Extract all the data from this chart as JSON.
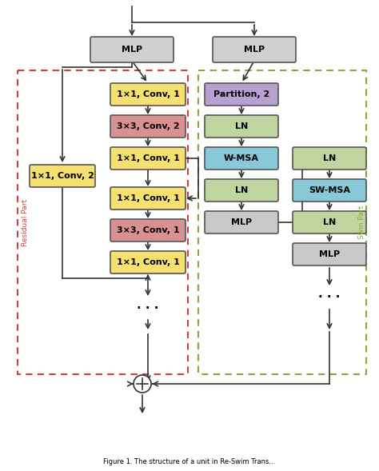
{
  "bg_color": "#ffffff",
  "mlp_color": "#d0d0d0",
  "yellow_color": "#f5e070",
  "pink_color": "#d89090",
  "purple_color": "#b8a0d0",
  "green_color": "#c0d4a0",
  "blue_color": "#88c8d8",
  "gray_color": "#c8c8c8",
  "red_dash": "#d04040",
  "green_dash": "#88aa33",
  "caption": "Figure 1. The structure of a unit in Re-Swim Trans...",
  "residual_label": "Residual Part",
  "swin_label": "Swin Part"
}
